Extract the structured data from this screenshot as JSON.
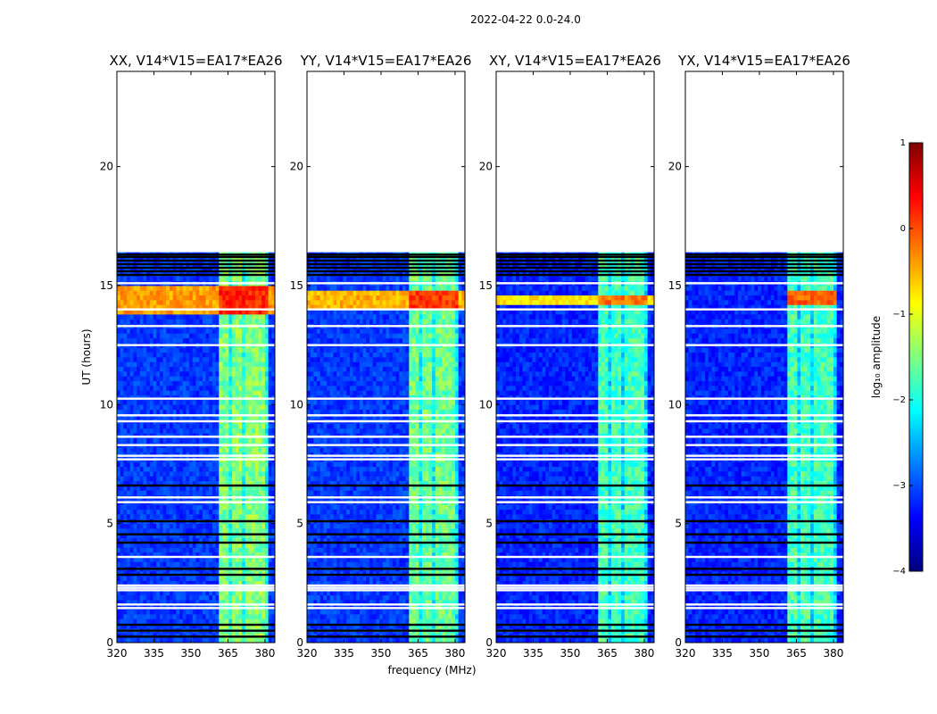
{
  "figure": {
    "suptitle": "2022-04-22 0.0-24.0",
    "xlabel": "frequency (MHz)",
    "ylabel": "UT (hours)"
  },
  "colorbar": {
    "label": "log₁₀ amplitude",
    "range": [
      -4,
      1
    ],
    "ticks": [
      1,
      0,
      -1,
      -2,
      -3,
      -4
    ],
    "tick_labels": [
      "1",
      "0",
      "−1",
      "−2",
      "−3",
      "−4"
    ],
    "colormap": "jet",
    "stops": [
      "#00007f",
      "#0000ff",
      "#007fff",
      "#00ffff",
      "#7fff7f",
      "#ffff00",
      "#ff7f00",
      "#ff0000",
      "#7f0000"
    ]
  },
  "chart_data": [
    {
      "type": "heatmap",
      "title": "XX, V14*V15=EA17*EA26",
      "xlabel": "frequency (MHz)",
      "ylabel": "UT (hours)",
      "xlim": [
        320,
        384
      ],
      "ylim": [
        0,
        24
      ],
      "x_ticks": [
        320,
        335,
        350,
        365,
        380
      ],
      "x_tick_labels": [
        "320",
        "335",
        "350",
        "365",
        "380"
      ],
      "y_ticks": [
        0,
        5,
        10,
        15,
        20
      ],
      "y_tick_labels": [
        "0",
        "5",
        "10",
        "15",
        "20"
      ],
      "data_extent_hours": [
        0,
        16.4
      ],
      "rfi_band_mhz": [
        361.5,
        381.5
      ],
      "hot_band_hours": [
        13.8,
        15.0
      ],
      "hot_band_full_width": true,
      "background_log_amp": -3.1,
      "rfi_log_amp": -1.5,
      "peak_log_amp": 0.2
    },
    {
      "type": "heatmap",
      "title": "YY, V14*V15=EA17*EA26",
      "xlabel": "frequency (MHz)",
      "ylabel": "UT (hours)",
      "xlim": [
        320,
        384
      ],
      "ylim": [
        0,
        24
      ],
      "x_ticks": [
        320,
        335,
        350,
        365,
        380
      ],
      "x_tick_labels": [
        "320",
        "335",
        "350",
        "365",
        "380"
      ],
      "y_ticks": [
        0,
        5,
        10,
        15,
        20
      ],
      "y_tick_labels": [
        "0",
        "5",
        "10",
        "15",
        "20"
      ],
      "data_extent_hours": [
        0,
        16.4
      ],
      "rfi_band_mhz": [
        361.5,
        381.5
      ],
      "hot_band_hours": [
        14.0,
        14.8
      ],
      "hot_band_full_width": true,
      "background_log_amp": -3.1,
      "rfi_log_amp": -1.6,
      "peak_log_amp": 0.1
    },
    {
      "type": "heatmap",
      "title": "XY, V14*V15=EA17*EA26",
      "xlabel": "frequency (MHz)",
      "ylabel": "UT (hours)",
      "xlim": [
        320,
        384
      ],
      "ylim": [
        0,
        24
      ],
      "x_ticks": [
        320,
        335,
        350,
        365,
        380
      ],
      "x_tick_labels": [
        "320",
        "335",
        "350",
        "365",
        "380"
      ],
      "y_ticks": [
        0,
        5,
        10,
        15,
        20
      ],
      "y_tick_labels": [
        "0",
        "5",
        "10",
        "15",
        "20"
      ],
      "data_extent_hours": [
        0,
        16.4
      ],
      "rfi_band_mhz": [
        361.5,
        381.5
      ],
      "hot_band_hours": [
        14.1,
        14.6
      ],
      "hot_band_full_width": true,
      "background_log_amp": -3.2,
      "rfi_log_amp": -1.8,
      "peak_log_amp": -0.2
    },
    {
      "type": "heatmap",
      "title": "YX, V14*V15=EA17*EA26",
      "xlabel": "frequency (MHz)",
      "ylabel": "UT (hours)",
      "xlim": [
        320,
        384
      ],
      "ylim": [
        0,
        24
      ],
      "x_ticks": [
        320,
        335,
        350,
        365,
        380
      ],
      "x_tick_labels": [
        "320",
        "335",
        "350",
        "365",
        "380"
      ],
      "y_ticks": [
        0,
        5,
        10,
        15,
        20
      ],
      "y_tick_labels": [
        "0",
        "5",
        "10",
        "15",
        "20"
      ],
      "data_extent_hours": [
        0,
        16.4
      ],
      "rfi_band_mhz": [
        361.5,
        381.5
      ],
      "hot_band_hours": [
        14.1,
        14.8
      ],
      "hot_band_full_width": false,
      "background_log_amp": -3.2,
      "rfi_log_amp": -1.8,
      "peak_log_amp": -0.1
    }
  ],
  "white_gap_hours": [
    0.5,
    1.45,
    1.6,
    2.2,
    2.3,
    2.4,
    3.6,
    5.9,
    6.1,
    7.7,
    7.85,
    8.3,
    8.65,
    9.3,
    9.55,
    10.25,
    12.5,
    13.3,
    14.0,
    15.1
  ],
  "black_gap_hours": [
    0.25,
    0.5,
    0.75,
    2.85,
    3.1,
    4.2,
    4.55,
    5.1,
    6.6,
    15.45,
    15.6,
    15.75,
    15.9,
    16.05,
    16.2,
    16.3
  ]
}
